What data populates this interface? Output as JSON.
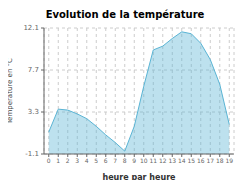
{
  "chart_data": {
    "type": "area",
    "title": "Evolution de la température",
    "x_label": "heure par heure",
    "y_label": "Température en °C",
    "x": [
      0,
      1,
      2,
      3,
      4,
      5,
      6,
      7,
      8,
      9,
      10,
      11,
      12,
      13,
      14,
      15,
      16,
      17,
      18,
      19
    ],
    "values": [
      1.2,
      3.6,
      3.5,
      3.1,
      2.6,
      1.8,
      0.9,
      0.1,
      -0.8,
      1.8,
      6.0,
      9.8,
      10.2,
      11.0,
      11.7,
      11.5,
      10.5,
      8.8,
      6.2,
      2.0
    ],
    "xlim": [
      -0.5,
      19.5
    ],
    "ylim": [
      -1.1,
      12.1
    ],
    "xticks": [
      0,
      1,
      2,
      3,
      4,
      5,
      6,
      7,
      8,
      9,
      10,
      11,
      12,
      13,
      14,
      15,
      16,
      17,
      18,
      19
    ],
    "yticks": [
      -1.1,
      3.3,
      7.7,
      12.1
    ],
    "color": "#5ab4d4",
    "grid": true
  }
}
